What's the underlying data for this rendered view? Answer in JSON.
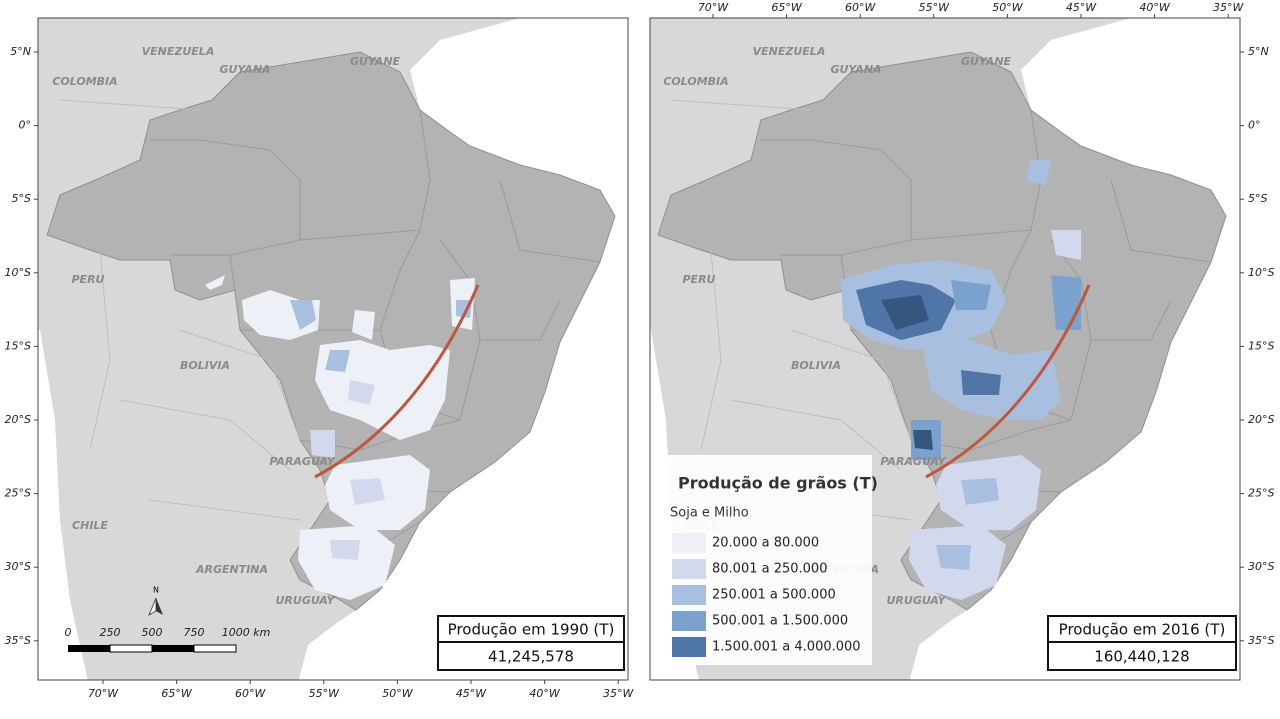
{
  "countries": [
    "VENEZUELA",
    "GUYANA",
    "GUYANE",
    "COLOMBIA",
    "PERU",
    "BOLIVIA",
    "PARAGUAY",
    "CHILE",
    "ARGENTINA",
    "URUGUAY"
  ],
  "lat_ticks": [
    "5°N",
    "0°",
    "5°S",
    "10°S",
    "15°S",
    "20°S",
    "25°S",
    "30°S",
    "35°S"
  ],
  "lon_ticks": [
    "70°W",
    "65°W",
    "60°W",
    "55°W",
    "50°W",
    "45°W",
    "40°W",
    "35°W"
  ],
  "left": {
    "scale_bar": {
      "labels": [
        "0",
        "250",
        "500",
        "750",
        "1000 km"
      ]
    },
    "north": "N",
    "production_box": {
      "title": "Produção em 1990 (T)",
      "value": "41,245,578"
    }
  },
  "right": {
    "production_box": {
      "title": "Produção em 2016 (T)",
      "value": "160,440,128"
    },
    "legend": {
      "title": "Produção de grãos (T)",
      "subtitle": "Soja e Milho",
      "items": [
        {
          "label": "20.000 a 80.000",
          "color": "#eef0f7"
        },
        {
          "label": "80.001 a 250.000",
          "color": "#d2d9ec"
        },
        {
          "label": "250.001 a 500.000",
          "color": "#a8bfdf"
        },
        {
          "label": "500.001 a 1.500.000",
          "color": "#7ba1cf"
        },
        {
          "label": "1.500.001 a 4.000.000",
          "color": "#4f76a6"
        }
      ]
    }
  }
}
